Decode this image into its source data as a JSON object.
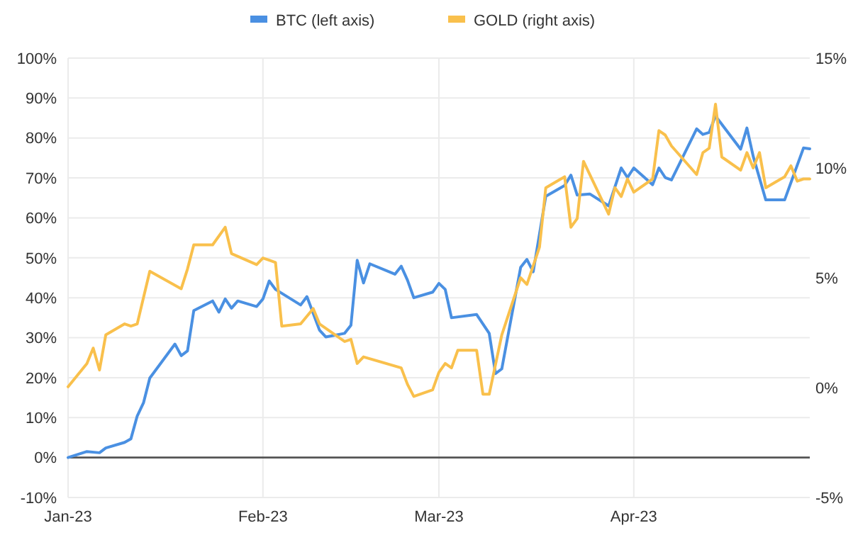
{
  "chart_data": {
    "type": "line",
    "legend": "top",
    "grid": true,
    "line_style": "solid",
    "xlim": [
      "2023-01-01",
      "2023-04-29"
    ],
    "xticks": [
      {
        "value": "2023-01-01",
        "label": "Jan-23"
      },
      {
        "value": "2023-02-01",
        "label": "Feb-23"
      },
      {
        "value": "2023-03-01",
        "label": "Mar-23"
      },
      {
        "value": "2023-04-01",
        "label": "Apr-23"
      }
    ],
    "ylim": [
      -10,
      100
    ],
    "yticks": [
      {
        "value": -10,
        "label": "-10%"
      },
      {
        "value": 0,
        "label": "0%"
      },
      {
        "value": 10,
        "label": "10%"
      },
      {
        "value": 20,
        "label": "20%"
      },
      {
        "value": 30,
        "label": "30%"
      },
      {
        "value": 40,
        "label": "40%"
      },
      {
        "value": 50,
        "label": "50%"
      },
      {
        "value": 60,
        "label": "60%"
      },
      {
        "value": 70,
        "label": "70%"
      },
      {
        "value": 80,
        "label": "80%"
      },
      {
        "value": 90,
        "label": "90%"
      },
      {
        "value": 100,
        "label": "100%"
      }
    ],
    "y2lim": [
      -5,
      15
    ],
    "y2ticks": [
      {
        "value": -5,
        "label": "-5%"
      },
      {
        "value": 0,
        "label": "0%"
      },
      {
        "value": 5,
        "label": "5%"
      },
      {
        "value": 10,
        "label": "10%"
      },
      {
        "value": 15,
        "label": "15%"
      }
    ],
    "series": [
      {
        "name": "BTC (left axis)",
        "color": "#4a90e2",
        "x": [
          "2023-01-01",
          "2023-01-04",
          "2023-01-06",
          "2023-01-07",
          "2023-01-10",
          "2023-01-11",
          "2023-01-12",
          "2023-01-13",
          "2023-01-14",
          "2023-01-18",
          "2023-01-19",
          "2023-01-20",
          "2023-01-21",
          "2023-01-24",
          "2023-01-25",
          "2023-01-26",
          "2023-01-27",
          "2023-01-28",
          "2023-01-31",
          "2023-02-01",
          "2023-02-02",
          "2023-02-03",
          "2023-02-07",
          "2023-02-08",
          "2023-02-10",
          "2023-02-11",
          "2023-02-14",
          "2023-02-15",
          "2023-02-16",
          "2023-02-17",
          "2023-02-18",
          "2023-02-22",
          "2023-02-23",
          "2023-02-24",
          "2023-02-25",
          "2023-02-28",
          "2023-03-01",
          "2023-03-02",
          "2023-03-03",
          "2023-03-07",
          "2023-03-09",
          "2023-03-10",
          "2023-03-11",
          "2023-03-14",
          "2023-03-15",
          "2023-03-16",
          "2023-03-18",
          "2023-03-21",
          "2023-03-22",
          "2023-03-23",
          "2023-03-25",
          "2023-03-28",
          "2023-03-30",
          "2023-03-31",
          "2023-04-01",
          "2023-04-04",
          "2023-04-05",
          "2023-04-06",
          "2023-04-07",
          "2023-04-11",
          "2023-04-12",
          "2023-04-13",
          "2023-04-14",
          "2023-04-18",
          "2023-04-19",
          "2023-04-20",
          "2023-04-22",
          "2023-04-25",
          "2023-04-28",
          "2023-04-29"
        ],
        "values": [
          0,
          1.5,
          1.2,
          2.4,
          3.8,
          4.7,
          10.4,
          13.7,
          19.9,
          28.4,
          25.5,
          26.7,
          36.8,
          39.2,
          36.4,
          39.7,
          37.4,
          39.2,
          37.8,
          39.7,
          44.2,
          42.1,
          38.2,
          40.3,
          31.9,
          30.2,
          31.1,
          33.1,
          49.4,
          43.7,
          48.5,
          45.9,
          47.9,
          44.4,
          40.0,
          41.4,
          43.6,
          42.1,
          35.0,
          35.8,
          31.1,
          21.0,
          22.2,
          47.6,
          49.6,
          46.5,
          65.4,
          68.1,
          70.7,
          65.7,
          66.0,
          63.0,
          72.5,
          70.1,
          72.5,
          68.3,
          72.5,
          70.1,
          69.5,
          82.3,
          80.9,
          81.4,
          85.5,
          77.2,
          82.5,
          75.4,
          64.5,
          64.5,
          77.5,
          77.3
        ]
      },
      {
        "name": "GOLD (right axis)",
        "color": "#f9c04c",
        "axis": "y2",
        "x": [
          "2023-01-01",
          "2023-01-04",
          "2023-01-05",
          "2023-01-06",
          "2023-01-07",
          "2023-01-10",
          "2023-01-11",
          "2023-01-12",
          "2023-01-14",
          "2023-01-19",
          "2023-01-20",
          "2023-01-21",
          "2023-01-24",
          "2023-01-26",
          "2023-01-27",
          "2023-01-31",
          "2023-02-01",
          "2023-02-02",
          "2023-02-03",
          "2023-02-04",
          "2023-02-07",
          "2023-02-09",
          "2023-02-10",
          "2023-02-14",
          "2023-02-15",
          "2023-02-16",
          "2023-02-17",
          "2023-02-23",
          "2023-02-24",
          "2023-02-25",
          "2023-02-28",
          "2023-03-01",
          "2023-03-02",
          "2023-03-03",
          "2023-03-04",
          "2023-03-07",
          "2023-03-08",
          "2023-03-09",
          "2023-03-11",
          "2023-03-14",
          "2023-03-15",
          "2023-03-17",
          "2023-03-18",
          "2023-03-21",
          "2023-03-22",
          "2023-03-23",
          "2023-03-24",
          "2023-03-28",
          "2023-03-29",
          "2023-03-30",
          "2023-03-31",
          "2023-04-01",
          "2023-04-04",
          "2023-04-05",
          "2023-04-06",
          "2023-04-07",
          "2023-04-11",
          "2023-04-12",
          "2023-04-13",
          "2023-04-14",
          "2023-04-15",
          "2023-04-18",
          "2023-04-19",
          "2023-04-20",
          "2023-04-21",
          "2023-04-22",
          "2023-04-25",
          "2023-04-26",
          "2023-04-27",
          "2023-04-28",
          "2023-04-29"
        ],
        "values": [
          0.04,
          1.1,
          1.8,
          0.8,
          2.4,
          2.9,
          2.8,
          2.9,
          5.3,
          4.5,
          5.4,
          6.5,
          6.5,
          7.3,
          6.1,
          5.6,
          5.9,
          5.8,
          5.7,
          2.8,
          2.9,
          3.6,
          2.9,
          2.1,
          2.2,
          1.1,
          1.4,
          0.9,
          0.15,
          -0.4,
          -0.1,
          0.7,
          1.1,
          0.9,
          1.7,
          1.7,
          -0.3,
          -0.3,
          2.4,
          5.0,
          4.7,
          6.4,
          9.1,
          9.6,
          7.3,
          7.7,
          10.3,
          7.9,
          9.1,
          8.7,
          9.5,
          8.9,
          9.5,
          11.7,
          11.5,
          11.0,
          9.7,
          10.7,
          10.9,
          12.9,
          10.5,
          9.9,
          10.7,
          10.0,
          10.7,
          9.1,
          9.6,
          10.1,
          9.4,
          9.5,
          9.5
        ]
      }
    ]
  }
}
